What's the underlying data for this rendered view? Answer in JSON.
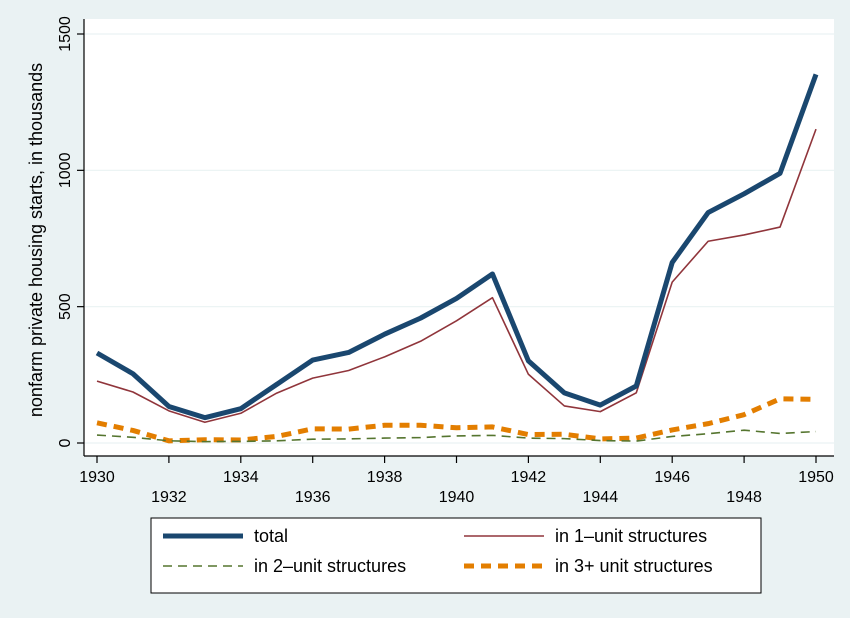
{
  "chart_data": {
    "type": "line",
    "ylabel": "nonfarm private housing starts, in thousands",
    "xlabel": "",
    "xlim": [
      1930,
      1950
    ],
    "ylim": [
      0,
      1500
    ],
    "x_ticks": [
      1930,
      1932,
      1934,
      1936,
      1938,
      1940,
      1942,
      1944,
      1946,
      1948,
      1950
    ],
    "y_ticks": [
      0,
      500,
      1000,
      1500
    ],
    "grid": "horizontal",
    "legend_position": "bottom",
    "x": [
      1930,
      1931,
      1932,
      1933,
      1934,
      1935,
      1936,
      1937,
      1938,
      1939,
      1940,
      1941,
      1942,
      1943,
      1944,
      1945,
      1946,
      1947,
      1948,
      1949,
      1950
    ],
    "series": [
      {
        "name": "total",
        "color": "#1a476f",
        "style": "solid-thick",
        "values": [
          330,
          254,
          134,
          93,
          126,
          215,
          304,
          332,
          399,
          458,
          530,
          620,
          301,
          184,
          139,
          209,
          662,
          845,
          914,
          989,
          1352
        ]
      },
      {
        "name": "in 1–unit structures",
        "color": "#90353b",
        "style": "solid-thin",
        "values": [
          227,
          187,
          118,
          76,
          109,
          183,
          238,
          266,
          316,
          373,
          448,
          533,
          252,
          136,
          115,
          184,
          590,
          740,
          763,
          792,
          1151
        ]
      },
      {
        "name": "in 2–unit structures",
        "color": "#55752f",
        "style": "dashed-thin",
        "values": [
          29,
          21,
          8,
          5,
          6,
          8,
          14,
          15,
          18,
          20,
          26,
          28,
          18,
          16,
          9,
          7,
          24,
          34,
          47,
          35,
          42
        ]
      },
      {
        "name": "in 3+ unit structures",
        "color": "#e37e00",
        "style": "dashed-thick",
        "values": [
          74,
          46,
          8,
          12,
          11,
          24,
          52,
          51,
          65,
          65,
          56,
          59,
          31,
          32,
          15,
          18,
          48,
          71,
          104,
          162,
          160
        ]
      }
    ],
    "legend": [
      {
        "label": "total",
        "series": 0
      },
      {
        "label": "in 1–unit structures",
        "series": 1
      },
      {
        "label": "in 2–unit structures",
        "series": 2
      },
      {
        "label": "in 3+ unit structures",
        "series": 3
      }
    ]
  }
}
